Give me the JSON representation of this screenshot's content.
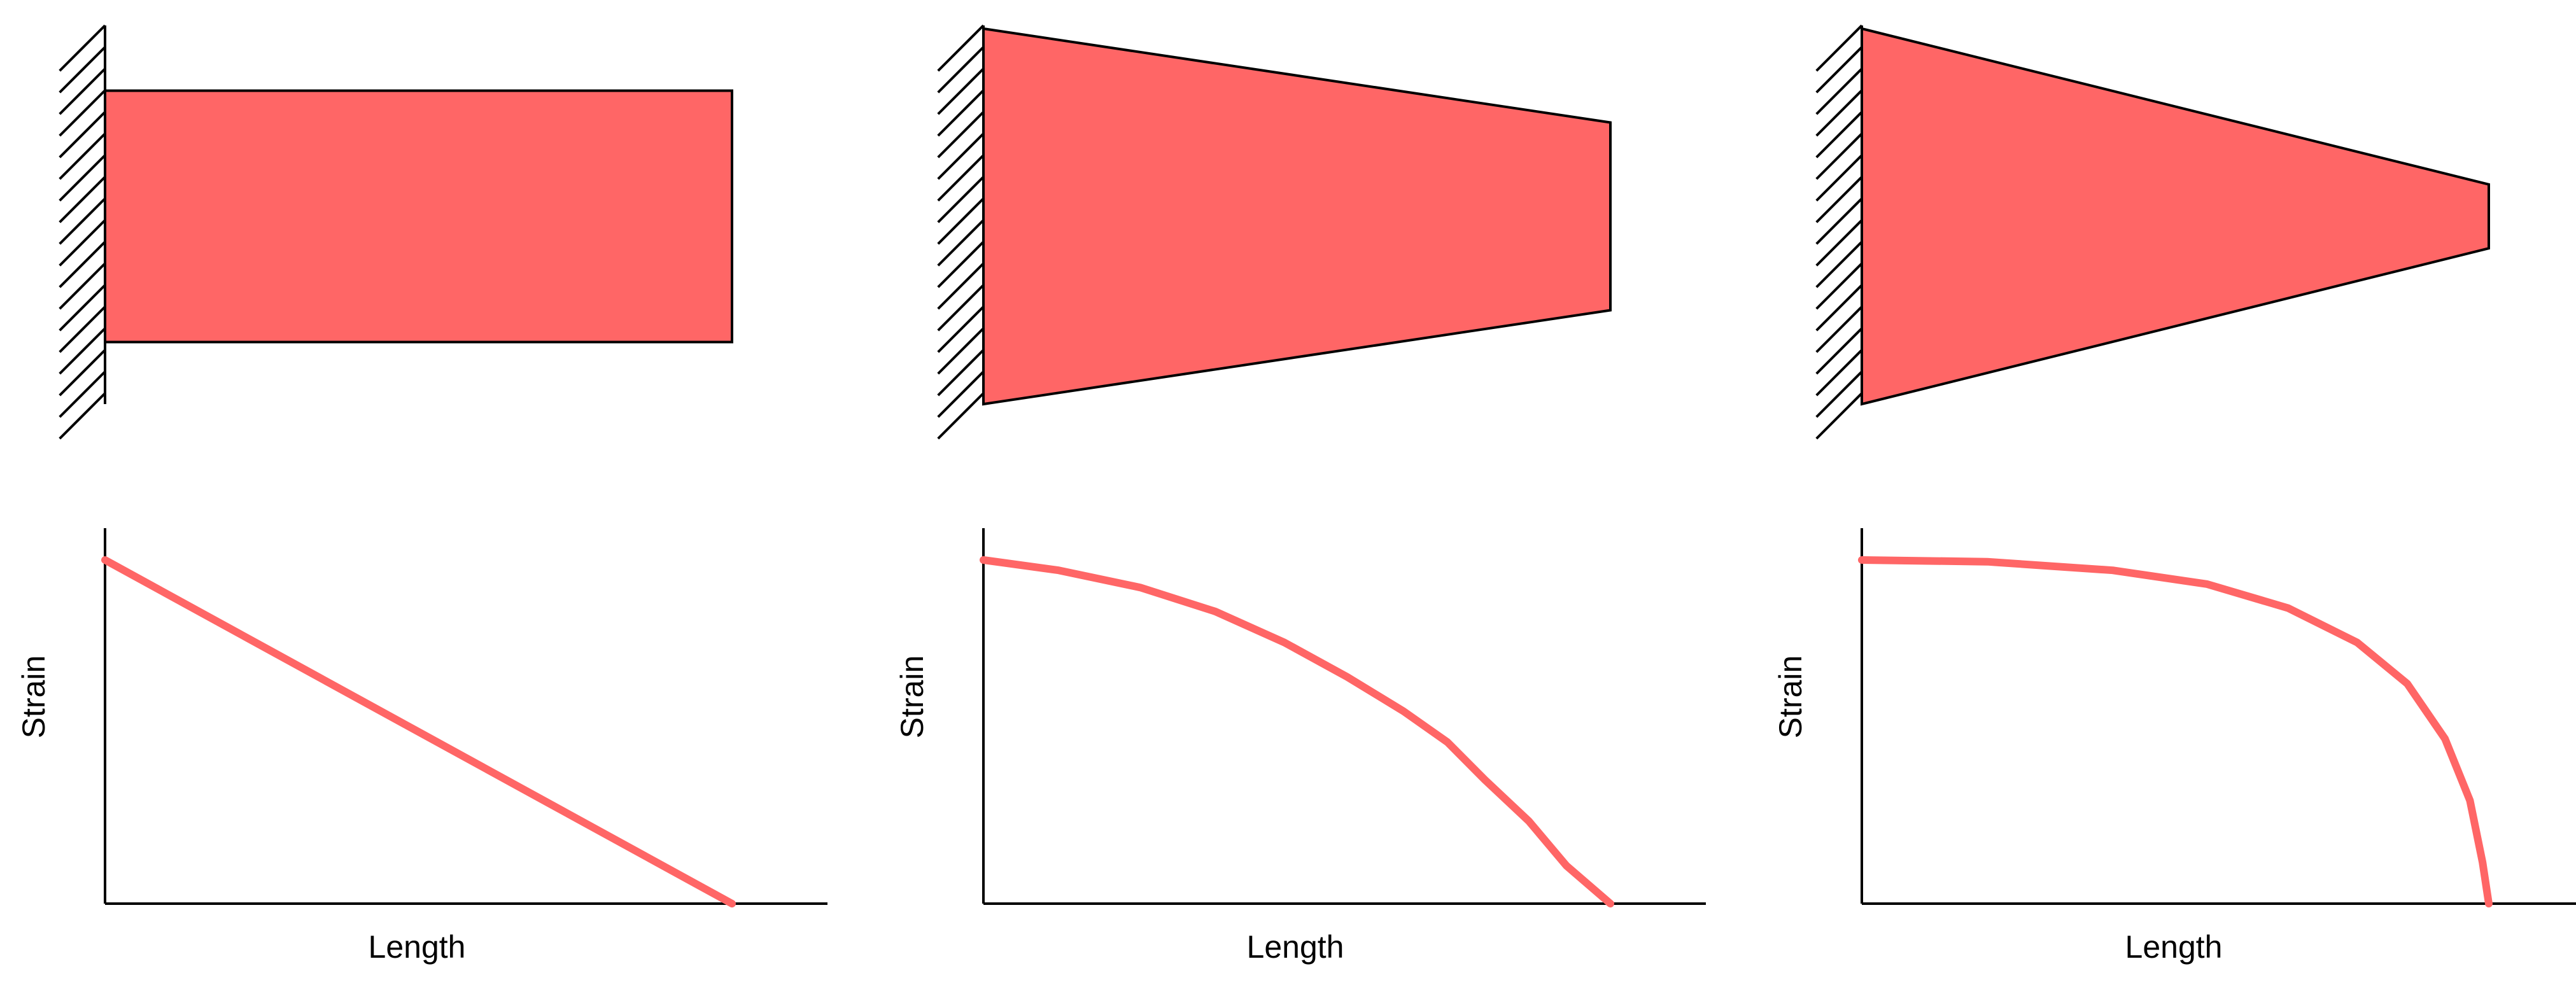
{
  "colors": {
    "beam_fill": "#ff6666",
    "curve_stroke": "#ff6666",
    "outline": "#000000",
    "background": "#ffffff"
  },
  "panels": [
    {
      "beam_shape": "uniform-rectangle",
      "support": "fixed-wall-hatched",
      "beam": {
        "root_height": 1.0,
        "tip_height": 1.0
      },
      "plot": {
        "xlabel": "Length",
        "ylabel": "Strain",
        "curve": [
          [
            0,
            1.0
          ],
          [
            1.0,
            0.0
          ]
        ]
      }
    },
    {
      "beam_shape": "linear-taper",
      "support": "fixed-wall-hatched",
      "beam": {
        "root_height": 1.0,
        "tip_height": 0.5
      },
      "plot": {
        "xlabel": "Length",
        "ylabel": "Strain",
        "curve": [
          [
            0,
            1.0
          ],
          [
            0.12,
            0.97
          ],
          [
            0.25,
            0.92
          ],
          [
            0.37,
            0.85
          ],
          [
            0.48,
            0.76
          ],
          [
            0.58,
            0.66
          ],
          [
            0.67,
            0.56
          ],
          [
            0.74,
            0.47
          ],
          [
            0.8,
            0.36
          ],
          [
            0.87,
            0.24
          ],
          [
            0.93,
            0.11
          ],
          [
            1.0,
            0.0
          ]
        ]
      }
    },
    {
      "beam_shape": "steep-taper",
      "support": "fixed-wall-hatched",
      "beam": {
        "root_height": 1.0,
        "tip_height": 0.17
      },
      "plot": {
        "xlabel": "Length",
        "ylabel": "Strain",
        "curve": [
          [
            0,
            1.0
          ],
          [
            0.2,
            0.995
          ],
          [
            0.4,
            0.97
          ],
          [
            0.55,
            0.93
          ],
          [
            0.68,
            0.86
          ],
          [
            0.79,
            0.76
          ],
          [
            0.87,
            0.64
          ],
          [
            0.93,
            0.48
          ],
          [
            0.97,
            0.3
          ],
          [
            0.99,
            0.12
          ],
          [
            1.0,
            0.0
          ]
        ]
      }
    }
  ]
}
